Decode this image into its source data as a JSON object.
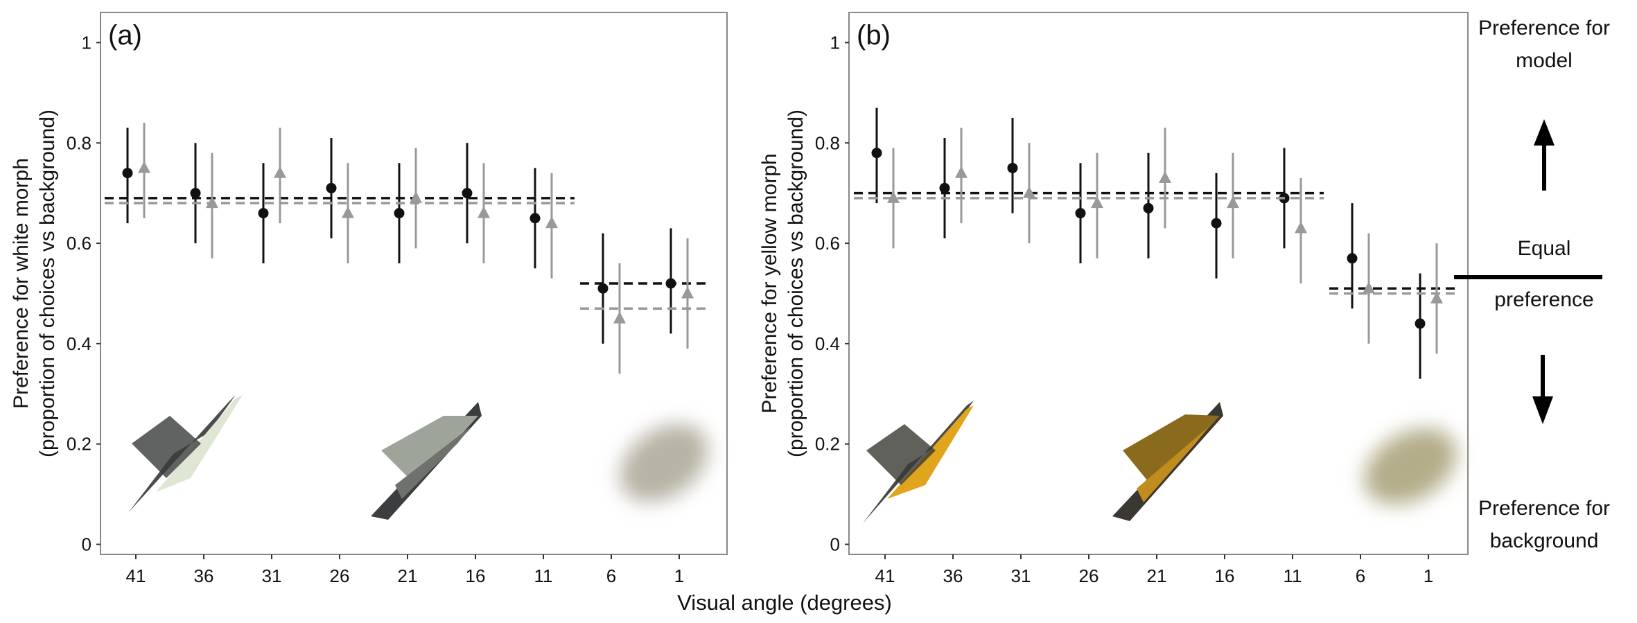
{
  "figure": {
    "x_axis_label": "Visual angle (degrees)",
    "right_annotations": {
      "top": [
        "Preference for",
        "model"
      ],
      "middle": [
        "Equal",
        "preference"
      ],
      "bottom": [
        "Preference for",
        "background"
      ]
    }
  },
  "colors": {
    "series_black": "#111111",
    "series_grey": "#999999",
    "frame": "#888888",
    "white_morph_light": "#dfe6d4",
    "white_morph_dark": "#2b2d2e",
    "yellow_morph_light": "#e0a51c",
    "yellow_morph_dark": "#2b2a24",
    "blur_white": "#b7b3a5",
    "blur_yellow": "#b4ad8a"
  },
  "chart_data": [
    {
      "type": "scatter",
      "panel_label": "(a)",
      "ylabel_lines": [
        "Preference for white morph",
        "(proportion of choices vs background)"
      ],
      "categories": [
        "41",
        "36",
        "31",
        "26",
        "21",
        "16",
        "11",
        "6",
        "1"
      ],
      "ylim": [
        -0.02,
        1.06
      ],
      "yticks": [
        0,
        0.2,
        0.4,
        0.6,
        0.8,
        1
      ],
      "ytick_labels": [
        "0",
        "0.2",
        "0.4",
        "0.6",
        "0.8",
        "1"
      ],
      "series": [
        {
          "marker": "circle",
          "values": [
            0.74,
            0.7,
            0.66,
            0.71,
            0.66,
            0.7,
            0.65,
            0.51,
            0.52
          ],
          "ci_low": [
            0.64,
            0.6,
            0.56,
            0.61,
            0.56,
            0.6,
            0.55,
            0.4,
            0.42
          ],
          "ci_high": [
            0.83,
            0.8,
            0.76,
            0.81,
            0.76,
            0.8,
            0.75,
            0.62,
            0.63
          ],
          "mean_lines": [
            {
              "from": "41",
              "to": "11",
              "y": 0.69
            },
            {
              "from": "6",
              "to": "1",
              "y": 0.52
            }
          ]
        },
        {
          "marker": "triangle",
          "values": [
            0.75,
            0.68,
            0.74,
            0.66,
            0.69,
            0.66,
            0.64,
            0.45,
            0.5
          ],
          "ci_low": [
            0.65,
            0.57,
            0.64,
            0.56,
            0.59,
            0.56,
            0.53,
            0.34,
            0.39
          ],
          "ci_high": [
            0.84,
            0.78,
            0.83,
            0.76,
            0.79,
            0.76,
            0.74,
            0.56,
            0.61
          ],
          "mean_lines": [
            {
              "from": "41",
              "to": "11",
              "y": 0.68
            },
            {
              "from": "6",
              "to": "1",
              "y": 0.47
            }
          ]
        }
      ],
      "grid": false,
      "legend": "none"
    },
    {
      "type": "scatter",
      "panel_label": "(b)",
      "ylabel_lines": [
        "Preference for yellow morph",
        "(proportion of choices vs background)"
      ],
      "categories": [
        "41",
        "36",
        "31",
        "26",
        "21",
        "16",
        "11",
        "6",
        "1"
      ],
      "ylim": [
        -0.02,
        1.06
      ],
      "yticks": [
        0,
        0.2,
        0.4,
        0.6,
        0.8,
        1
      ],
      "ytick_labels": [
        "0",
        "0.2",
        "0.4",
        "0.6",
        "0.8",
        "1"
      ],
      "series": [
        {
          "marker": "circle",
          "values": [
            0.78,
            0.71,
            0.75,
            0.66,
            0.67,
            0.64,
            0.69,
            0.57,
            0.44
          ],
          "ci_low": [
            0.68,
            0.61,
            0.66,
            0.56,
            0.57,
            0.53,
            0.59,
            0.47,
            0.33
          ],
          "ci_high": [
            0.87,
            0.81,
            0.85,
            0.76,
            0.78,
            0.74,
            0.79,
            0.68,
            0.54
          ],
          "mean_lines": [
            {
              "from": "41",
              "to": "11",
              "y": 0.7
            },
            {
              "from": "6",
              "to": "1",
              "y": 0.51
            }
          ]
        },
        {
          "marker": "triangle",
          "values": [
            0.69,
            0.74,
            0.7,
            0.68,
            0.73,
            0.68,
            0.63,
            0.51,
            0.49
          ],
          "ci_low": [
            0.59,
            0.64,
            0.6,
            0.57,
            0.63,
            0.57,
            0.52,
            0.4,
            0.38
          ],
          "ci_high": [
            0.79,
            0.83,
            0.8,
            0.78,
            0.83,
            0.78,
            0.73,
            0.62,
            0.6
          ],
          "mean_lines": [
            {
              "from": "41",
              "to": "11",
              "y": 0.69
            },
            {
              "from": "6",
              "to": "1",
              "y": 0.5
            }
          ]
        }
      ],
      "grid": false,
      "legend": "none"
    }
  ]
}
